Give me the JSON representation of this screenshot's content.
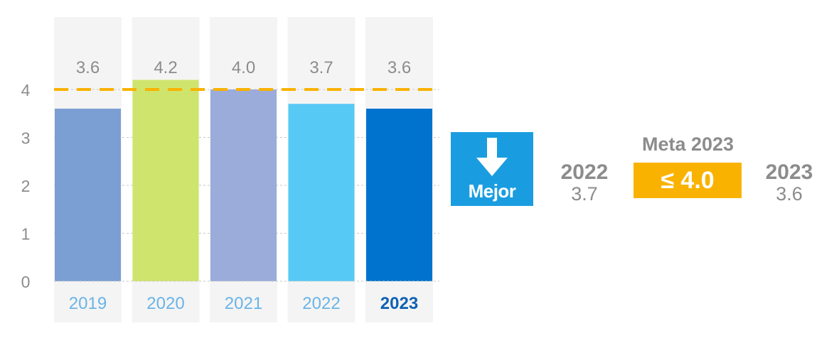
{
  "chart_data": {
    "type": "bar",
    "categories": [
      "2019",
      "2020",
      "2021",
      "2022",
      "2023"
    ],
    "values": [
      3.6,
      4.2,
      4.0,
      3.7,
      3.6
    ],
    "value_labels": [
      "3.6",
      "4.2",
      "4.0",
      "3.7",
      "3.6"
    ],
    "bar_colors": [
      "#7b9fd3",
      "#cfe46c",
      "#9bacdb",
      "#56caf5",
      "#0073cf"
    ],
    "panel_color": "#f4f4f4",
    "category_label_colors": [
      "#6ab4e6",
      "#6ab4e6",
      "#6ab4e6",
      "#6ab4e6",
      "#0e62b3"
    ],
    "highlight_category": "2023",
    "ylim": [
      0,
      4.5
    ],
    "yticks": [
      0,
      1,
      2,
      3,
      4
    ],
    "grid": true,
    "target_line": {
      "value": 4.0,
      "color": "#f9b200",
      "style": "dashed"
    }
  },
  "indicator": {
    "label": "Mejor",
    "icon": "down-arrow-icon",
    "color": "#1a9de0"
  },
  "previous": {
    "year": "2022",
    "value": "3.7"
  },
  "target": {
    "title": "Meta 2023",
    "value": "≤ 4.0",
    "color": "#f9b200"
  },
  "current": {
    "year": "2023",
    "value": "3.6"
  }
}
